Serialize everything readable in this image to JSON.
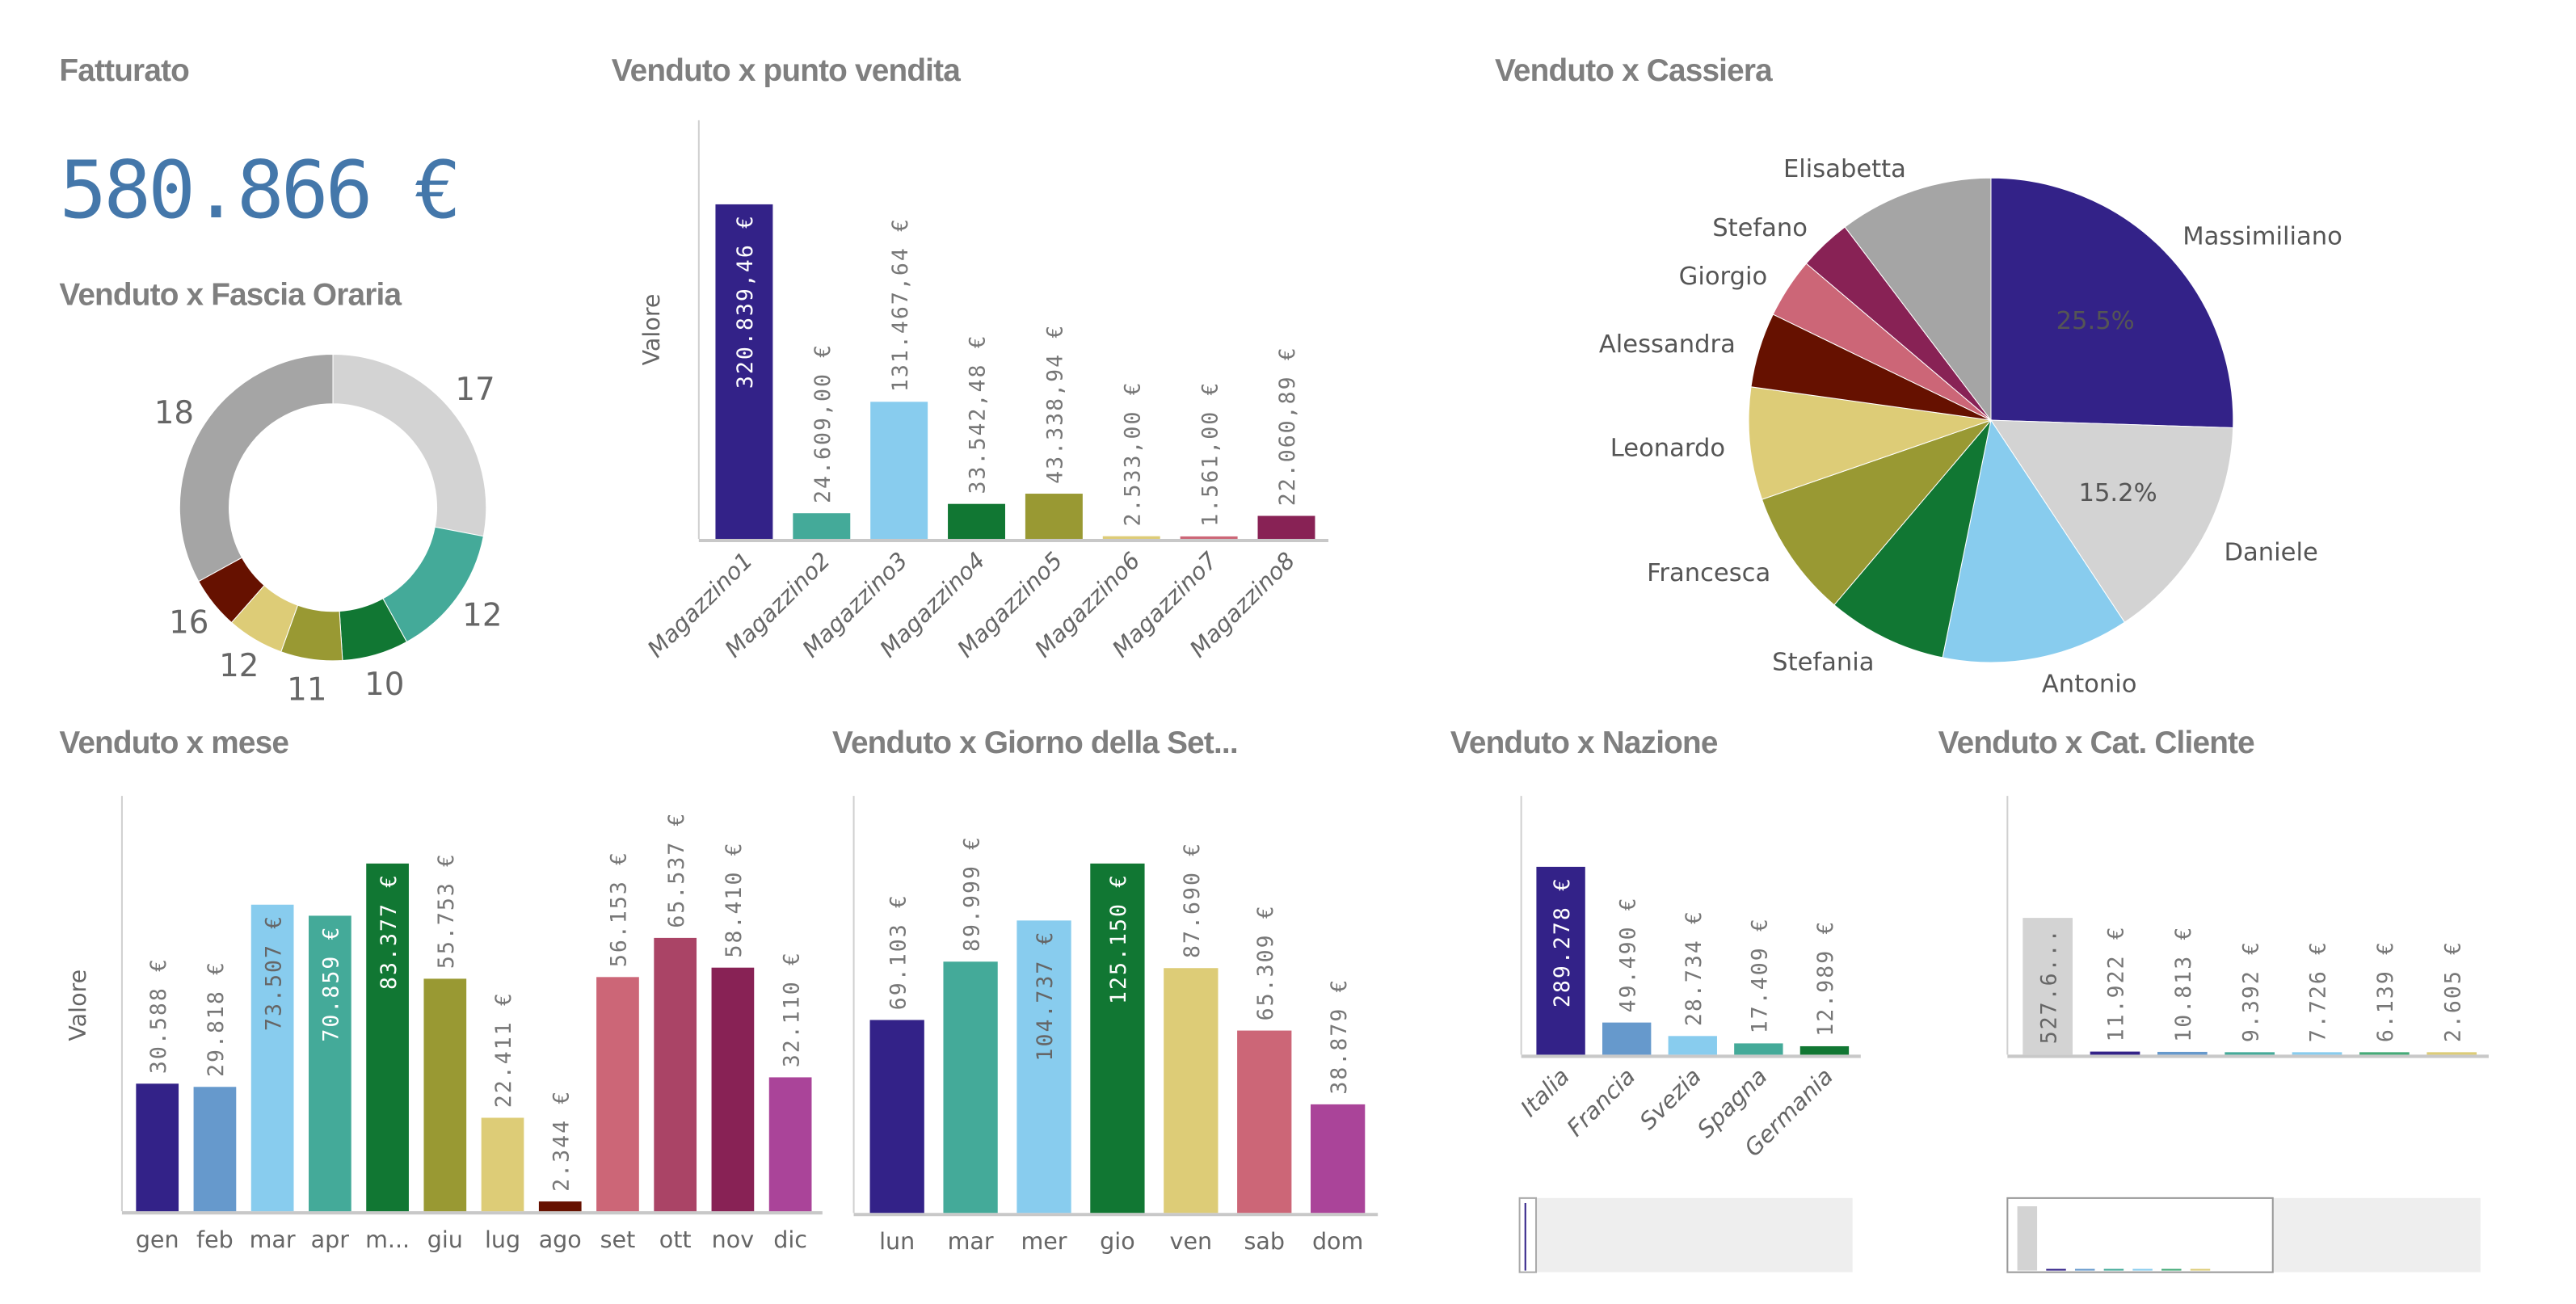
{
  "kpi": {
    "title": "Fatturato",
    "value": "580.866 €"
  },
  "donut": {
    "title": "Venduto x Fascia Oraria",
    "chart_data": {
      "type": "pie",
      "donut": true,
      "labels": [
        "17",
        "12",
        "10",
        "11",
        "12",
        "16",
        "18"
      ],
      "values": [
        28,
        14,
        7,
        6.5,
        6,
        5.5,
        33
      ],
      "colors": [
        "#d3d3d3",
        "#44aa99",
        "#117733",
        "#999933",
        "#ddcc77",
        "#661100",
        "#a5a5a5"
      ]
    }
  },
  "punto": {
    "title": "Venduto x punto vendita",
    "chart_data": {
      "type": "bar",
      "ylabel": "Valore",
      "categories": [
        "Magazzino1",
        "Magazzino2",
        "Magazzino3",
        "Magazzino4",
        "Magazzino5",
        "Magazzino6",
        "Magazzino7",
        "Magazzino8"
      ],
      "values": [
        320839.46,
        24609.0,
        131467.64,
        33542.48,
        43338.94,
        2533.0,
        1561.0,
        22060.89
      ],
      "labels": [
        "320.839,46 €",
        "24.609,00 €",
        "131.467,64 €",
        "33.542,48 €",
        "43.338,94 €",
        "2.533,00 €",
        "1.561,00 €",
        "22.060,89 €"
      ],
      "colors": [
        "#332288",
        "#44aa99",
        "#88ccee",
        "#117733",
        "#999933",
        "#ddcc77",
        "#cc6677",
        "#882255"
      ]
    }
  },
  "cassiera": {
    "title": "Venduto x Cassiera",
    "chart_data": {
      "type": "pie",
      "labels": [
        "Massimiliano",
        "Daniele",
        "Antonio",
        "Stefania",
        "Francesca",
        "Leonardo",
        "Alessandra",
        "Giorgio",
        "Stefano",
        "Elisabetta"
      ],
      "values": [
        25.5,
        15.2,
        12.5,
        8,
        8.5,
        7.5,
        5,
        4,
        3.5,
        10.3
      ],
      "pct_labels": [
        "25.5%",
        "15.2%",
        "",
        "",
        "",
        "",
        "",
        "",
        "",
        ""
      ],
      "colors": [
        "#332288",
        "#d3d3d3",
        "#88ccee",
        "#117733",
        "#999933",
        "#ddcc77",
        "#661100",
        "#cc6677",
        "#882255",
        "#a5a5a5"
      ]
    }
  },
  "mese": {
    "title": "Venduto x mese",
    "chart_data": {
      "type": "bar",
      "ylabel": "Valore",
      "categories": [
        "gen",
        "feb",
        "mar",
        "apr",
        "m...",
        "giu",
        "lug",
        "ago",
        "set",
        "ott",
        "nov",
        "dic"
      ],
      "values": [
        30588,
        29818,
        73507,
        70859,
        83377,
        55753,
        22411,
        2344,
        56153,
        65537,
        58410,
        32110
      ],
      "labels": [
        "30.588 €",
        "29.818 €",
        "73.507 €",
        "70.859 €",
        "83.377 €",
        "55.753 €",
        "22.411 €",
        "2.344 €",
        "56.153 €",
        "65.537 €",
        "58.410 €",
        "32.110 €"
      ],
      "colors": [
        "#332288",
        "#6699cc",
        "#88ccee",
        "#44aa99",
        "#117733",
        "#999933",
        "#ddcc77",
        "#661100",
        "#cc6677",
        "#aa4466",
        "#882255",
        "#aa4499"
      ]
    }
  },
  "giorno": {
    "title": "Venduto x Giorno della Set...",
    "chart_data": {
      "type": "bar",
      "categories": [
        "lun",
        "mar",
        "mer",
        "gio",
        "ven",
        "sab",
        "dom"
      ],
      "values": [
        69103,
        89999,
        104737,
        125150,
        87690,
        65309,
        38879
      ],
      "labels": [
        "69.103 €",
        "89.999 €",
        "104.737 €",
        "125.150 €",
        "87.690 €",
        "65.309 €",
        "38.879 €"
      ],
      "colors": [
        "#332288",
        "#44aa99",
        "#88ccee",
        "#117733",
        "#ddcc77",
        "#cc6677",
        "#aa4499"
      ]
    }
  },
  "nazione": {
    "title": "Venduto x Nazione",
    "chart_data": {
      "type": "bar",
      "categories": [
        "Italia",
        "Francia",
        "Svezia",
        "Spagna",
        "Germania"
      ],
      "values": [
        289278,
        49490,
        28734,
        17409,
        12989
      ],
      "labels": [
        "289.278 €",
        "49.490 €",
        "28.734 €",
        "17.409 €",
        "12.989 €"
      ],
      "colors": [
        "#332288",
        "#6699cc",
        "#88ccee",
        "#44aa99",
        "#117733"
      ]
    }
  },
  "cliente": {
    "title": "Venduto x Cat. Cliente",
    "chart_data": {
      "type": "bar",
      "values": [
        527600,
        11922,
        10813,
        9392,
        7726,
        6139,
        2605
      ],
      "labels": [
        "527.6...",
        "11.922 €",
        "10.813 €",
        "9.392 €",
        "7.726 €",
        "6.139 €",
        "2.605 €"
      ],
      "colors": [
        "#d3d3d3",
        "#332288",
        "#6699cc",
        "#44aa99",
        "#88ccee",
        "#44aa77",
        "#ddcc77"
      ]
    }
  }
}
